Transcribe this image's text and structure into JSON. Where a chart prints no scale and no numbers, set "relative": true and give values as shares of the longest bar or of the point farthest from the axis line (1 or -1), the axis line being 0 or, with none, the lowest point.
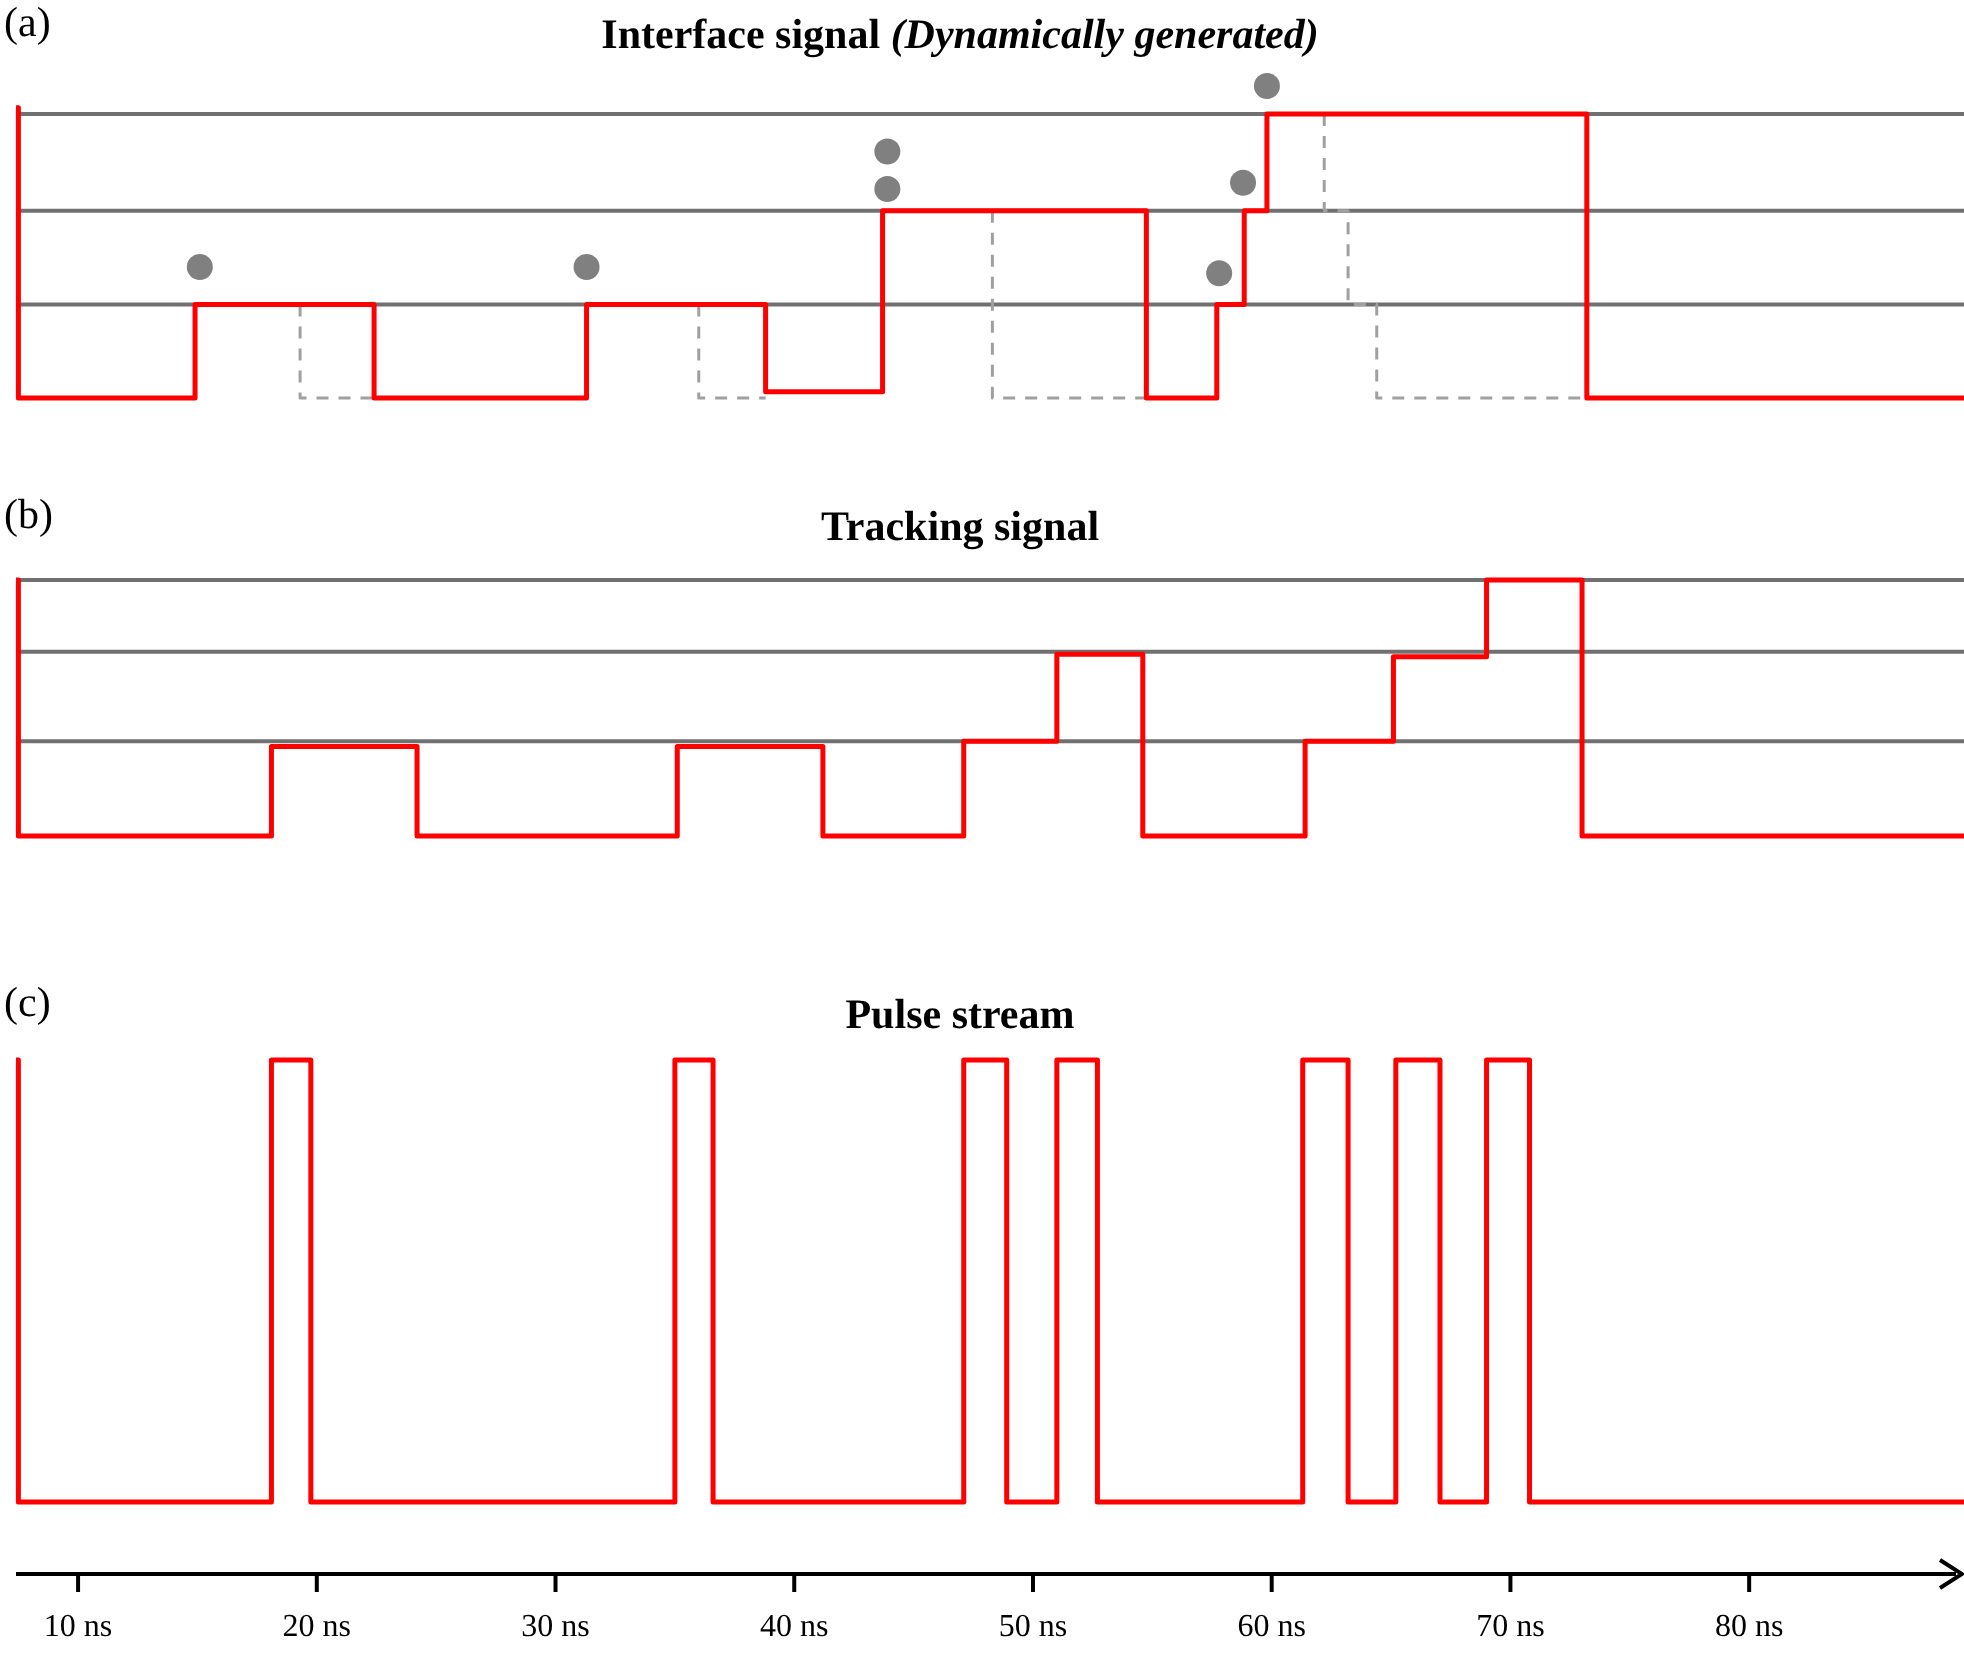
{
  "chart_data": [
    {
      "type": "step",
      "title": "Interface signal",
      "subtitle": "(Dynamically generated)",
      "annotations": [
        "(a)"
      ],
      "relative": true,
      "xlim": [
        7.4,
        89
      ],
      "tick_labels": false,
      "ref_lines": [
        {
          "axis": "y",
          "value": 0.3,
          "color": "#707070"
        },
        {
          "axis": "y",
          "value": 0.6,
          "color": "#707070"
        },
        {
          "axis": "y",
          "value": 0.91,
          "color": "#707070"
        }
      ],
      "series": [
        {
          "color": "#a0a0a0",
          "line_style": "dashed",
          "x": [
            19.3,
            19.3,
            22.4,
            22.5,
            36.0,
            36.0,
            38.8,
            38.9,
            48.3,
            48.3,
            54.75,
            54.8,
            62.2,
            62.2,
            63.2,
            63.2,
            64.4,
            64.4,
            73.2
          ],
          "values": [
            0.3,
            0,
            0,
            null,
            0.3,
            0,
            0,
            null,
            0.6,
            0,
            0,
            null,
            0.91,
            0.6,
            0.6,
            0.3,
            0.3,
            0,
            0
          ]
        },
        {
          "color": "#ff0000",
          "x": [
            7.4,
            7.5,
            14.9,
            22.4,
            31.3,
            38.8,
            43.7,
            54.75,
            57.7,
            58.85,
            59.8,
            73.2,
            89
          ],
          "values": [
            0.93,
            0,
            0.3,
            0,
            0.3,
            0.02,
            0.6,
            0,
            0.3,
            0.6,
            0.91,
            0,
            0
          ]
        },
        {
          "type": "scatter",
          "color": "#808080",
          "marker": "circle",
          "x": [
            15.1,
            31.3,
            43.9,
            43.9,
            57.8,
            58.8,
            59.8
          ],
          "values": [
            0.42,
            0.42,
            0.79,
            0.67,
            0.4,
            0.69,
            1
          ]
        }
      ]
    },
    {
      "type": "step",
      "title": "Tracking signal",
      "annotations": [
        "(b)"
      ],
      "relative": true,
      "xlim": [
        7.4,
        89
      ],
      "tick_labels": false,
      "ref_lines": [
        {
          "axis": "y",
          "value": 0.37,
          "color": "#707070"
        },
        {
          "axis": "y",
          "value": 0.72,
          "color": "#707070"
        },
        {
          "axis": "y",
          "value": 1,
          "color": "#707070"
        }
      ],
      "series": [
        {
          "color": "#ff0000",
          "x": [
            7.4,
            7.5,
            18.1,
            24.2,
            35.1,
            41.2,
            47.1,
            51.0,
            54.6,
            61.4,
            65.1,
            69.0,
            73.0,
            89
          ],
          "values": [
            1,
            0,
            0.35,
            0,
            0.35,
            0,
            0.37,
            0.71,
            0,
            0.37,
            0.7,
            1,
            0,
            0
          ]
        }
      ]
    },
    {
      "type": "step",
      "title": "Pulse stream",
      "annotations": [
        "(c)"
      ],
      "relative": true,
      "xlim": [
        7.4,
        89
      ],
      "tick_labels": "x",
      "xticks": [
        {
          "value": 10,
          "label": "10 ns"
        },
        {
          "value": 20,
          "label": "20 ns"
        },
        {
          "value": 30,
          "label": "30 ns"
        },
        {
          "value": 40,
          "label": "40 ns"
        },
        {
          "value": 50,
          "label": "50 ns"
        },
        {
          "value": 60,
          "label": "60 ns"
        },
        {
          "value": 70,
          "label": "70 ns"
        },
        {
          "value": 80,
          "label": "80 ns"
        }
      ],
      "series": [
        {
          "color": "#ff0000",
          "x": [
            7.4,
            7.5,
            18.1,
            19.75,
            35.0,
            36.6,
            47.1,
            48.9,
            51.0,
            52.7,
            61.3,
            63.2,
            65.2,
            67.05,
            69.0,
            70.8,
            89
          ],
          "values": [
            1,
            0.14,
            1,
            0.14,
            1,
            0.14,
            1,
            0.14,
            1,
            0.14,
            1,
            0.14,
            1,
            0.14,
            1,
            0.14,
            0.14
          ]
        }
      ]
    }
  ]
}
